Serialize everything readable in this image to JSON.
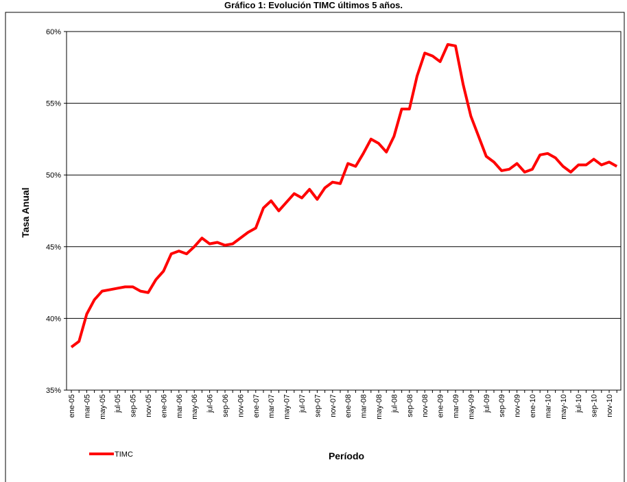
{
  "chart_data": {
    "type": "line",
    "title": "Gráfico 1: Evolución TIMC últimos 5 años.",
    "x_label": "Período",
    "y_label": "Tasa Anual",
    "categories": [
      "ene-05",
      null,
      "mar-05",
      null,
      "may-05",
      null,
      "jul-05",
      null,
      "sep-05",
      null,
      "nov-05",
      null,
      "ene-06",
      null,
      "mar-06",
      null,
      "may-06",
      null,
      "jul-06",
      null,
      "sep-06",
      null,
      "nov-06",
      null,
      "ene-07",
      null,
      "mar-07",
      null,
      "may-07",
      null,
      "jul-07",
      null,
      "sep-07",
      null,
      "nov-07",
      null,
      "ene-08",
      null,
      "mar-08",
      null,
      "may-08",
      null,
      "jul-08",
      null,
      "sep-08",
      null,
      "nov-08",
      null,
      "ene-09",
      null,
      "mar-09",
      null,
      "may-09",
      null,
      "jul-09",
      null,
      "sep-09",
      null,
      "nov-09",
      null,
      "ene-10",
      null,
      "mar-10",
      null,
      "may-10",
      null,
      "jul-10",
      null,
      "sep-10",
      null,
      "nov-10",
      null
    ],
    "series": [
      {
        "name": "TIMC",
        "color": "#ff0000",
        "values": [
          38.0,
          38.4,
          40.3,
          41.3,
          41.9,
          42.0,
          42.1,
          42.2,
          42.2,
          41.9,
          41.8,
          42.7,
          43.3,
          44.5,
          44.7,
          44.5,
          45.0,
          45.6,
          45.2,
          45.3,
          45.1,
          45.2,
          45.6,
          46.0,
          46.3,
          47.7,
          48.2,
          47.5,
          48.1,
          48.7,
          48.4,
          49.0,
          48.3,
          49.1,
          49.5,
          49.4,
          50.8,
          50.6,
          51.5,
          52.5,
          52.2,
          51.6,
          52.7,
          54.6,
          54.6,
          56.9,
          58.5,
          58.3,
          57.9,
          59.1,
          59.0,
          56.3,
          54.1,
          52.7,
          51.3,
          50.9,
          50.3,
          50.4,
          50.8,
          50.2,
          50.4,
          51.4,
          51.5,
          51.2,
          50.6,
          50.2,
          50.7,
          50.7,
          51.1,
          50.7,
          50.9,
          50.6
        ]
      }
    ],
    "ylim": [
      35,
      60
    ],
    "yticks": [
      {
        "value": 35,
        "label": "35%"
      },
      {
        "value": 40,
        "label": "40%"
      },
      {
        "value": 45,
        "label": "45%"
      },
      {
        "value": 50,
        "label": "50%"
      },
      {
        "value": 55,
        "label": "55%"
      },
      {
        "value": 60,
        "label": "60%"
      }
    ],
    "grid": true,
    "legend": "bottom-left"
  }
}
